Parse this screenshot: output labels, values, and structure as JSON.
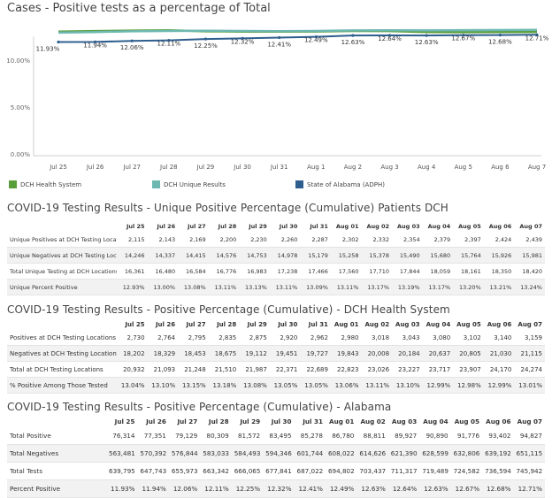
{
  "chart_data": {
    "type": "line",
    "title": "Cases - Positive tests as a percentage of Total",
    "x": [
      "Jul 25",
      "Jul 26",
      "Jul 27",
      "Jul 28",
      "Jul 29",
      "Jul 30",
      "Jul 31",
      "Aug 1",
      "Aug 2",
      "Aug 3",
      "Aug 4",
      "Aug 5",
      "Aug 6",
      "Aug 7"
    ],
    "yticks": [
      "10.00%",
      "5.00%",
      "0.00%"
    ],
    "ylim": [
      0,
      12.5
    ],
    "series": [
      {
        "name": "DCH Health System",
        "color": "#5a9e3a",
        "values": [
          13.04,
          13.1,
          13.15,
          13.18,
          13.08,
          13.05,
          13.05,
          13.06,
          13.11,
          13.1,
          12.99,
          12.98,
          12.99,
          13.01
        ]
      },
      {
        "name": "DCH Unique Results",
        "color": "#6db8b1",
        "values": [
          12.93,
          13.0,
          13.08,
          13.11,
          13.13,
          13.11,
          13.09,
          13.11,
          13.17,
          13.19,
          13.17,
          13.2,
          13.21,
          13.24
        ]
      },
      {
        "name": "State of Alabama (ADPH)",
        "color": "#2e5e8e",
        "values": [
          11.93,
          11.94,
          12.06,
          12.11,
          12.25,
          12.32,
          12.41,
          12.49,
          12.63,
          12.64,
          12.63,
          12.67,
          12.68,
          12.71
        ]
      }
    ],
    "data_labels": [
      "11.93%",
      "11.94%",
      "12.06%",
      "12.11%",
      "12.25%",
      "12.32%",
      "12.41%",
      "12.49%",
      "12.63%",
      "12.64%",
      "12.63%",
      "12.67%",
      "12.68%",
      "12.71%"
    ],
    "grid": false,
    "legend_position": "bottom"
  },
  "tables": [
    {
      "title": "COVID-19 Testing Results - Unique Positive Percentage (Cumulative) Patients DCH",
      "columns": [
        "Jul 25",
        "Jul 26",
        "Jul 27",
        "Jul 28",
        "Jul 29",
        "Jul 30",
        "Jul 31",
        "Aug 01",
        "Aug 02",
        "Aug 03",
        "Aug 04",
        "Aug 05",
        "Aug 06",
        "Aug 07"
      ],
      "rows": [
        {
          "label": "Unique Positives at DCH Testing Locations",
          "values": [
            "2,115",
            "2,143",
            "2,169",
            "2,200",
            "2,230",
            "2,260",
            "2,287",
            "2,302",
            "2,332",
            "2,354",
            "2,379",
            "2,397",
            "2,424",
            "2,439"
          ]
        },
        {
          "label": "Unique Negatives at DCH Testing Locations",
          "values": [
            "14,246",
            "14,337",
            "14,415",
            "14,576",
            "14,753",
            "14,978",
            "15,179",
            "15,258",
            "15,378",
            "15,490",
            "15,680",
            "15,764",
            "15,926",
            "15,981"
          ]
        },
        {
          "label": "Total Unique Testing at DCH Locations",
          "values": [
            "16,361",
            "16,480",
            "16,584",
            "16,776",
            "16,983",
            "17,238",
            "17,466",
            "17,560",
            "17,710",
            "17,844",
            "18,059",
            "18,161",
            "18,350",
            "18,420"
          ]
        },
        {
          "label": "Unique Percent Positive",
          "values": [
            "12.93%",
            "13.00%",
            "13.08%",
            "13.11%",
            "13.13%",
            "13.11%",
            "13.09%",
            "13.11%",
            "13.17%",
            "13.19%",
            "13.17%",
            "13.20%",
            "13.21%",
            "13.24%"
          ]
        }
      ]
    },
    {
      "title": "COVID-19 Testing Results - Positive Percentage (Cumulative) - DCH Health System",
      "columns": [
        "Jul 25",
        "Jul 26",
        "Jul 27",
        "Jul 28",
        "Jul 29",
        "Jul 30",
        "Jul 31",
        "Aug 01",
        "Aug 02",
        "Aug 03",
        "Aug 04",
        "Aug 05",
        "Aug 06",
        "Aug 07"
      ],
      "rows": [
        {
          "label": "Positives at DCH Testing Locations",
          "values": [
            "2,730",
            "2,764",
            "2,795",
            "2,835",
            "2,875",
            "2,920",
            "2,962",
            "2,980",
            "3,018",
            "3,043",
            "3,080",
            "3,102",
            "3,140",
            "3,159"
          ]
        },
        {
          "label": "Negatives at DCH Testing Locations",
          "values": [
            "18,202",
            "18,329",
            "18,453",
            "18,675",
            "19,112",
            "19,451",
            "19,727",
            "19,843",
            "20,008",
            "20,184",
            "20,637",
            "20,805",
            "21,030",
            "21,115"
          ]
        },
        {
          "label": "Total at DCH Testing Locations",
          "values": [
            "20,932",
            "21,093",
            "21,248",
            "21,510",
            "21,987",
            "22,371",
            "22,689",
            "22,823",
            "23,026",
            "23,227",
            "23,717",
            "23,907",
            "24,170",
            "24,274"
          ]
        },
        {
          "label": "% Positive Among Those Tested",
          "values": [
            "13.04%",
            "13.10%",
            "13.15%",
            "13.18%",
            "13.08%",
            "13.05%",
            "13.05%",
            "13.06%",
            "13.11%",
            "13.10%",
            "12.99%",
            "12.98%",
            "12.99%",
            "13.01%"
          ]
        }
      ]
    },
    {
      "title": "COVID-19 Testing Results - Positive Percentage (Cumulative) - Alabama",
      "columns": [
        "Jul 25",
        "Jul 26",
        "Jul 27",
        "Jul 28",
        "Jul 29",
        "Jul 30",
        "Jul 31",
        "Aug 01",
        "Aug 02",
        "Aug 03",
        "Aug 04",
        "Aug 05",
        "Aug 06",
        "Aug 07"
      ],
      "rows": [
        {
          "label": "Total Positive",
          "values": [
            "76,314",
            "77,351",
            "79,129",
            "80,309",
            "81,572",
            "83,495",
            "85,278",
            "86,780",
            "88,811",
            "89,927",
            "90,890",
            "91,776",
            "93,402",
            "94,827"
          ]
        },
        {
          "label": "Total Negatives",
          "values": [
            "563,481",
            "570,392",
            "576,844",
            "583,033",
            "584,493",
            "594,346",
            "601,744",
            "608,022",
            "614,626",
            "621,390",
            "628,599",
            "632,806",
            "639,192",
            "651,115"
          ]
        },
        {
          "label": "Total Tests",
          "values": [
            "639,795",
            "647,743",
            "655,973",
            "663,342",
            "666,065",
            "677,841",
            "687,022",
            "694,802",
            "703,437",
            "711,317",
            "719,489",
            "724,582",
            "736,594",
            "745,942"
          ]
        },
        {
          "label": "Percent Positive",
          "values": [
            "11.93%",
            "11.94%",
            "12.06%",
            "12.11%",
            "12.25%",
            "12.32%",
            "12.41%",
            "12.49%",
            "12.63%",
            "12.64%",
            "12.63%",
            "12.67%",
            "12.68%",
            "12.71%"
          ]
        }
      ]
    }
  ]
}
